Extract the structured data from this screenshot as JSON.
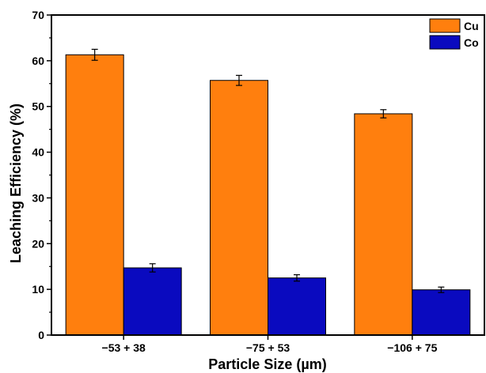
{
  "chart_data": {
    "type": "bar",
    "title": "",
    "xlabel": "Particle Size (µm)",
    "ylabel": "Leaching Efficiency (%)",
    "categories": [
      "−53 + 38",
      "−75 + 53",
      "−106 + 75"
    ],
    "ylim": [
      0,
      70
    ],
    "yticks": [
      0,
      10,
      20,
      30,
      40,
      50,
      60,
      70
    ],
    "series": [
      {
        "name": "Cu",
        "color": "#FF7F0E",
        "values": [
          61.3,
          55.7,
          48.4
        ],
        "errors": [
          1.2,
          1.1,
          0.9
        ]
      },
      {
        "name": "Co",
        "color": "#0A0ABF",
        "values": [
          14.7,
          12.5,
          9.9
        ],
        "errors": [
          0.9,
          0.7,
          0.6
        ]
      }
    ],
    "legend": "top-right",
    "grid": false
  }
}
